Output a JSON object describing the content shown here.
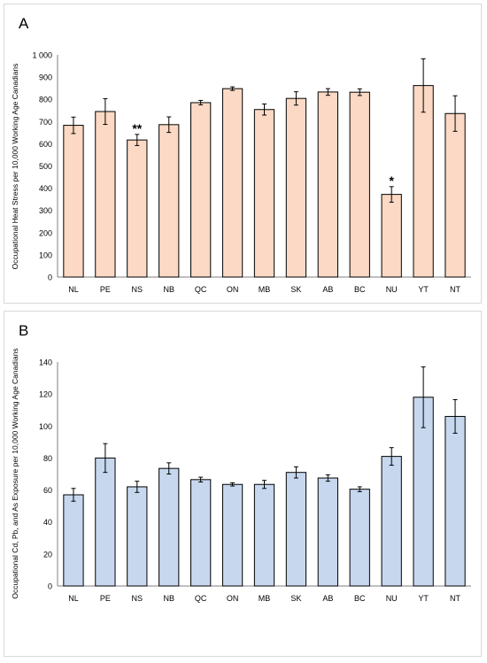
{
  "chart_data": [
    {
      "panel_label": "A",
      "type": "bar",
      "ylabel": "Occupational Heat Stress per 10,000 Working Age Canadians",
      "categories": [
        "NL",
        "PE",
        "NS",
        "NB",
        "QC",
        "ON",
        "MB",
        "SK",
        "AB",
        "BC",
        "NU",
        "YT",
        "NT"
      ],
      "values": [
        683,
        745,
        617,
        686,
        785,
        848,
        754,
        804,
        833,
        832,
        372,
        862,
        736
      ],
      "error": [
        37,
        58,
        25,
        35,
        10,
        8,
        25,
        30,
        15,
        15,
        35,
        120,
        80
      ],
      "annotations": {
        "NS": "**",
        "NU": "*"
      },
      "ylim": [
        0,
        1000
      ],
      "yticks": [
        0,
        100,
        200,
        300,
        400,
        500,
        600,
        700,
        800,
        900,
        1000
      ],
      "ytick_labels": [
        "0",
        "100",
        "200",
        "300",
        "400",
        "500",
        "600",
        "700",
        "800",
        "900",
        "1 000"
      ],
      "bar_fill": "#fbd9c4",
      "bar_stroke": "#000000"
    },
    {
      "panel_label": "B",
      "type": "bar",
      "ylabel": "Occupational Cd, Pb, and As Exposure per 10,000 Working Age Canadians",
      "categories": [
        "NL",
        "PE",
        "NS",
        "NB",
        "QC",
        "ON",
        "MB",
        "SK",
        "AB",
        "BC",
        "NU",
        "YT",
        "NT"
      ],
      "values": [
        57,
        80,
        62,
        73.5,
        66.5,
        63.5,
        63.5,
        71,
        67.5,
        60.5,
        81,
        118,
        106
      ],
      "error": [
        4,
        9,
        3.5,
        3.5,
        1.5,
        1,
        2.5,
        3.5,
        2,
        1.5,
        5.5,
        19,
        10.5
      ],
      "annotations": {},
      "ylim": [
        0,
        140
      ],
      "yticks": [
        0,
        20,
        40,
        60,
        80,
        100,
        120,
        140
      ],
      "ytick_labels": [
        "0",
        "20",
        "40",
        "60",
        "80",
        "100",
        "120",
        "140"
      ],
      "bar_fill": "#c6d7ee",
      "bar_stroke": "#000000"
    }
  ]
}
